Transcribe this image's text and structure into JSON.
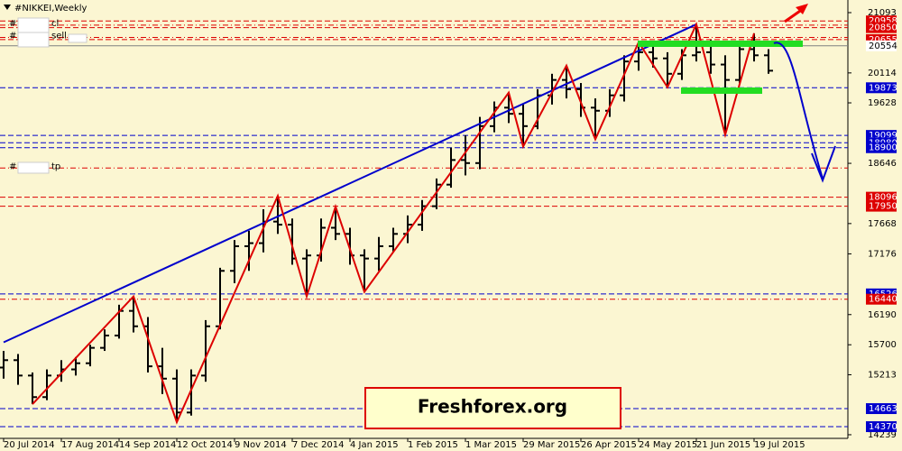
{
  "chart_data": {
    "type": "ohlc",
    "title": "#NIKKEI,Weekly",
    "watermark": "Freshforex.org",
    "categories": [
      "20 Jul 2014",
      null,
      null,
      null,
      "17 Aug 2014",
      null,
      null,
      null,
      "14 Sep 2014",
      null,
      null,
      null,
      "12 Oct 2014",
      null,
      null,
      null,
      "9 Nov 2014",
      null,
      null,
      null,
      "7 Dec 2014",
      null,
      null,
      null,
      "4 Jan 2015",
      null,
      null,
      null,
      "1 Feb 2015",
      null,
      null,
      null,
      "1 Mar 2015",
      null,
      null,
      null,
      "29 Mar 2015",
      null,
      null,
      null,
      "26 Apr 2015",
      null,
      null,
      null,
      "24 May 2015",
      null,
      null,
      null,
      "21 Jun 2015",
      null,
      null,
      null,
      "19 Jul 2015",
      null
    ],
    "open": [
      15330,
      15450,
      15200,
      14850,
      15200,
      15300,
      15400,
      15650,
      15850,
      16250,
      16000,
      15350,
      15150,
      14600,
      15200,
      16000,
      16900,
      17300,
      17350,
      17700,
      17650,
      17100,
      17150,
      17600,
      17500,
      17150,
      17100,
      17300,
      17500,
      17650,
      17950,
      18300,
      18700,
      18650,
      19250,
      19550,
      19450,
      19250,
      19750,
      20000,
      19850,
      19550,
      19500,
      19750,
      20300,
      20450,
      20350,
      20100,
      20400,
      20450,
      20250,
      20000,
      20500,
      20400
    ],
    "high": [
      15600,
      15550,
      15250,
      15300,
      15450,
      15500,
      15700,
      15950,
      16350,
      16485,
      16150,
      15650,
      15300,
      15300,
      16100,
      16950,
      17400,
      17550,
      17900,
      18118,
      17750,
      17250,
      17750,
      17943,
      17600,
      17250,
      17450,
      17600,
      17800,
      18050,
      18400,
      18900,
      19100,
      19400,
      19650,
      19795,
      19600,
      19850,
      20100,
      20233,
      19950,
      19700,
      19850,
      20400,
      20612,
      20550,
      20450,
      20500,
      20903,
      20650,
      20400,
      20600,
      20758,
      20500
    ],
    "low": [
      15150,
      15050,
      14735,
      14800,
      15100,
      15200,
      15350,
      15600,
      15800,
      15900,
      15250,
      14900,
      14443,
      14550,
      15100,
      15950,
      16700,
      16900,
      17200,
      17500,
      17000,
      16485,
      17050,
      17400,
      17000,
      16558,
      16900,
      17200,
      17350,
      17550,
      17900,
      18250,
      18450,
      18550,
      19150,
      19300,
      18920,
      19200,
      19600,
      19700,
      19400,
      19037,
      19400,
      19650,
      20150,
      20200,
      19883,
      20000,
      20300,
      20100,
      19110,
      19950,
      20300,
      20100
    ],
    "close": [
      15450,
      15200,
      14850,
      15200,
      15300,
      15400,
      15650,
      15850,
      16250,
      16000,
      15350,
      15150,
      14600,
      15200,
      16000,
      16900,
      17300,
      17350,
      17700,
      17650,
      17100,
      17150,
      17600,
      17500,
      17150,
      17100,
      17300,
      17500,
      17650,
      17950,
      18300,
      18700,
      18650,
      19250,
      19550,
      19450,
      19250,
      19750,
      20000,
      19850,
      19550,
      19500,
      19750,
      20300,
      20450,
      20350,
      20100,
      20400,
      20450,
      20250,
      20000,
      20500,
      20400,
      20150
    ],
    "color": "#000000",
    "ylim": [
      14180,
      21298
    ],
    "yticks": [
      14239,
      15213,
      15700,
      16190,
      17176,
      17668,
      18646,
      19628,
      20114,
      21093
    ],
    "zigzag": {
      "color": "#dd0000",
      "x": [
        2,
        9,
        12,
        19,
        21,
        23,
        25,
        35,
        36,
        39,
        41,
        44,
        46,
        48,
        50,
        52
      ],
      "values": [
        14735,
        16485,
        14443,
        18118,
        16485,
        17943,
        16558,
        19795,
        18920,
        20233,
        19037,
        20612,
        19883,
        20903,
        19110,
        20758
      ]
    },
    "trendline": {
      "color": "#0000cc",
      "x": [
        0,
        48
      ],
      "values": [
        15740,
        20903
      ]
    },
    "levels": [
      {
        "value": 20958,
        "color": "#dd0000",
        "style": "dashed"
      },
      {
        "value": 20850,
        "color": "#dd0000",
        "style": "dashed"
      },
      {
        "value": 20655,
        "color": "#dd0000",
        "style": "dashed"
      },
      {
        "value": 20554,
        "color": "#808080",
        "style": "solid"
      },
      {
        "value": 19873,
        "color": "#0000cc",
        "style": "dashed"
      },
      {
        "value": 19099,
        "color": "#0000cc",
        "style": "dashed"
      },
      {
        "value": 18980,
        "color": "#0000cc",
        "style": "dashed"
      },
      {
        "value": 18900,
        "color": "#0000cc",
        "style": "dashed"
      },
      {
        "value": 18096,
        "color": "#dd0000",
        "style": "dashed"
      },
      {
        "value": 17950,
        "color": "#dd0000",
        "style": "dashed"
      },
      {
        "value": 16526,
        "color": "#0000cc",
        "style": "dashed"
      },
      {
        "value": 16440,
        "color": "#dd0000",
        "style": "dashdot"
      },
      {
        "value": 14663,
        "color": "#0000cc",
        "style": "dashed"
      },
      {
        "value": 14370,
        "color": "#0000cc",
        "style": "dashed"
      }
    ],
    "annotations": [
      {
        "prefix": "#",
        "suffix": "cl",
        "value": 20889
      },
      {
        "prefix": "#",
        "suffix": "sell",
        "value": 20690
      },
      {
        "prefix": "#",
        "suffix": "tp",
        "value": 18570
      }
    ]
  }
}
